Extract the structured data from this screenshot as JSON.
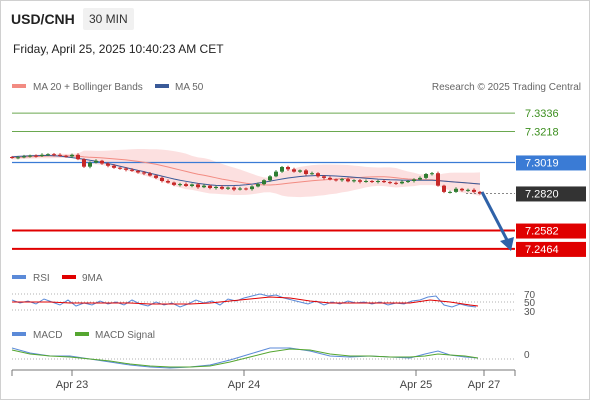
{
  "header": {
    "symbol": "USD/CNH",
    "timeframe": "30 MIN",
    "datetime": "Friday, April 25, 2025 10:40:23 AM CET",
    "credit": "Research © 2025 Trading Central"
  },
  "legend": {
    "ma20": "MA 20 + Bollinger Bands",
    "ma50": "MA 50",
    "rsi": "RSI",
    "ma9": "9MA",
    "macd": "MACD",
    "macd_signal": "MACD Signal"
  },
  "colors": {
    "resistance": "#6aa84f",
    "pivot": "#3a7bd5",
    "support": "#e00000",
    "price": "#333333",
    "arrow": "#2f62a8",
    "candle_up": "#2e7d32",
    "candle_down": "#c62828",
    "ma20": "#f28b82",
    "ma50": "#3a5a98",
    "band_fill": "#fbd5d5"
  },
  "chart_data": {
    "type": "candlestick",
    "x_ticks": [
      "Apr 23",
      "Apr 24",
      "Apr 25",
      "Apr 27"
    ],
    "ylim": [
      7.238,
      7.342
    ],
    "levels": [
      {
        "label": "7.3336",
        "value": 7.3336,
        "kind": "resistance"
      },
      {
        "label": "7.3218",
        "value": 7.3218,
        "kind": "resistance"
      },
      {
        "label": "7.3019",
        "value": 7.3019,
        "kind": "pivot"
      },
      {
        "label": "7.2820",
        "value": 7.282,
        "kind": "price"
      },
      {
        "label": "7.2582",
        "value": 7.2582,
        "kind": "support"
      },
      {
        "label": "7.2464",
        "value": 7.2464,
        "kind": "support"
      }
    ],
    "close": [
      7.305,
      7.3052,
      7.3058,
      7.3063,
      7.306,
      7.3068,
      7.3072,
      7.3068,
      7.3062,
      7.3058,
      7.3068,
      7.304,
      7.2992,
      7.3018,
      7.303,
      7.3012,
      7.2998,
      7.2985,
      7.298,
      7.2972,
      7.2965,
      7.2955,
      7.2948,
      7.2935,
      7.292,
      7.29,
      7.289,
      7.2875,
      7.288,
      7.2868,
      7.2878,
      7.286,
      7.287,
      7.2855,
      7.2862,
      7.285,
      7.2858,
      7.2845,
      7.2852,
      7.2848,
      7.2865,
      7.288,
      7.2905,
      7.293,
      7.296,
      7.299,
      7.2975,
      7.296,
      7.2968,
      7.2945,
      7.295,
      7.293,
      7.292,
      7.291,
      7.2905,
      7.2912,
      7.2898,
      7.2905,
      7.2895,
      7.29,
      7.2895,
      7.29,
      7.2893,
      7.2888,
      7.2885,
      7.2895,
      7.29,
      7.291,
      7.292,
      7.2945,
      7.295,
      7.287,
      7.283,
      7.283,
      7.285,
      7.284,
      7.2843,
      7.283,
      7.282
    ],
    "ma50": [
      7.3055,
      7.3058,
      7.306,
      7.3062,
      7.3063,
      7.3064,
      7.3064,
      7.3062,
      7.306,
      7.3055,
      7.305,
      7.3045,
      7.304,
      7.3033,
      7.3027,
      7.302,
      7.3012,
      7.3004,
      7.2995,
      7.2986,
      7.2977,
      7.2968,
      7.296,
      7.295,
      7.2941,
      7.2931,
      7.2922,
      7.2913,
      7.2905,
      7.2898,
      7.2891,
      7.2885,
      7.288,
      7.2875,
      7.2872,
      7.287,
      7.287,
      7.2871,
      7.2873,
      7.2876,
      7.288,
      7.2886,
      7.2892,
      7.2899,
      7.2906,
      7.2913,
      7.2919,
      7.2924,
      7.2929,
      7.2932,
      7.2934,
      7.2935,
      7.2935,
      7.2934,
      7.2932,
      7.293,
      7.2927,
      7.2924,
      7.2921,
      7.2918,
      7.2915,
      7.2912,
      7.291,
      7.2908,
      7.2907,
      7.2906,
      7.2905,
      7.2905,
      7.2905,
      7.2905,
      7.2905,
      7.2902,
      7.2899,
      7.2896,
      7.2893,
      7.289,
      7.2887,
      7.2884,
      7.2881
    ],
    "rsi": {
      "levels": [
        "70",
        "50",
        "30"
      ]
    },
    "macd": {
      "zero_label": "0"
    }
  }
}
